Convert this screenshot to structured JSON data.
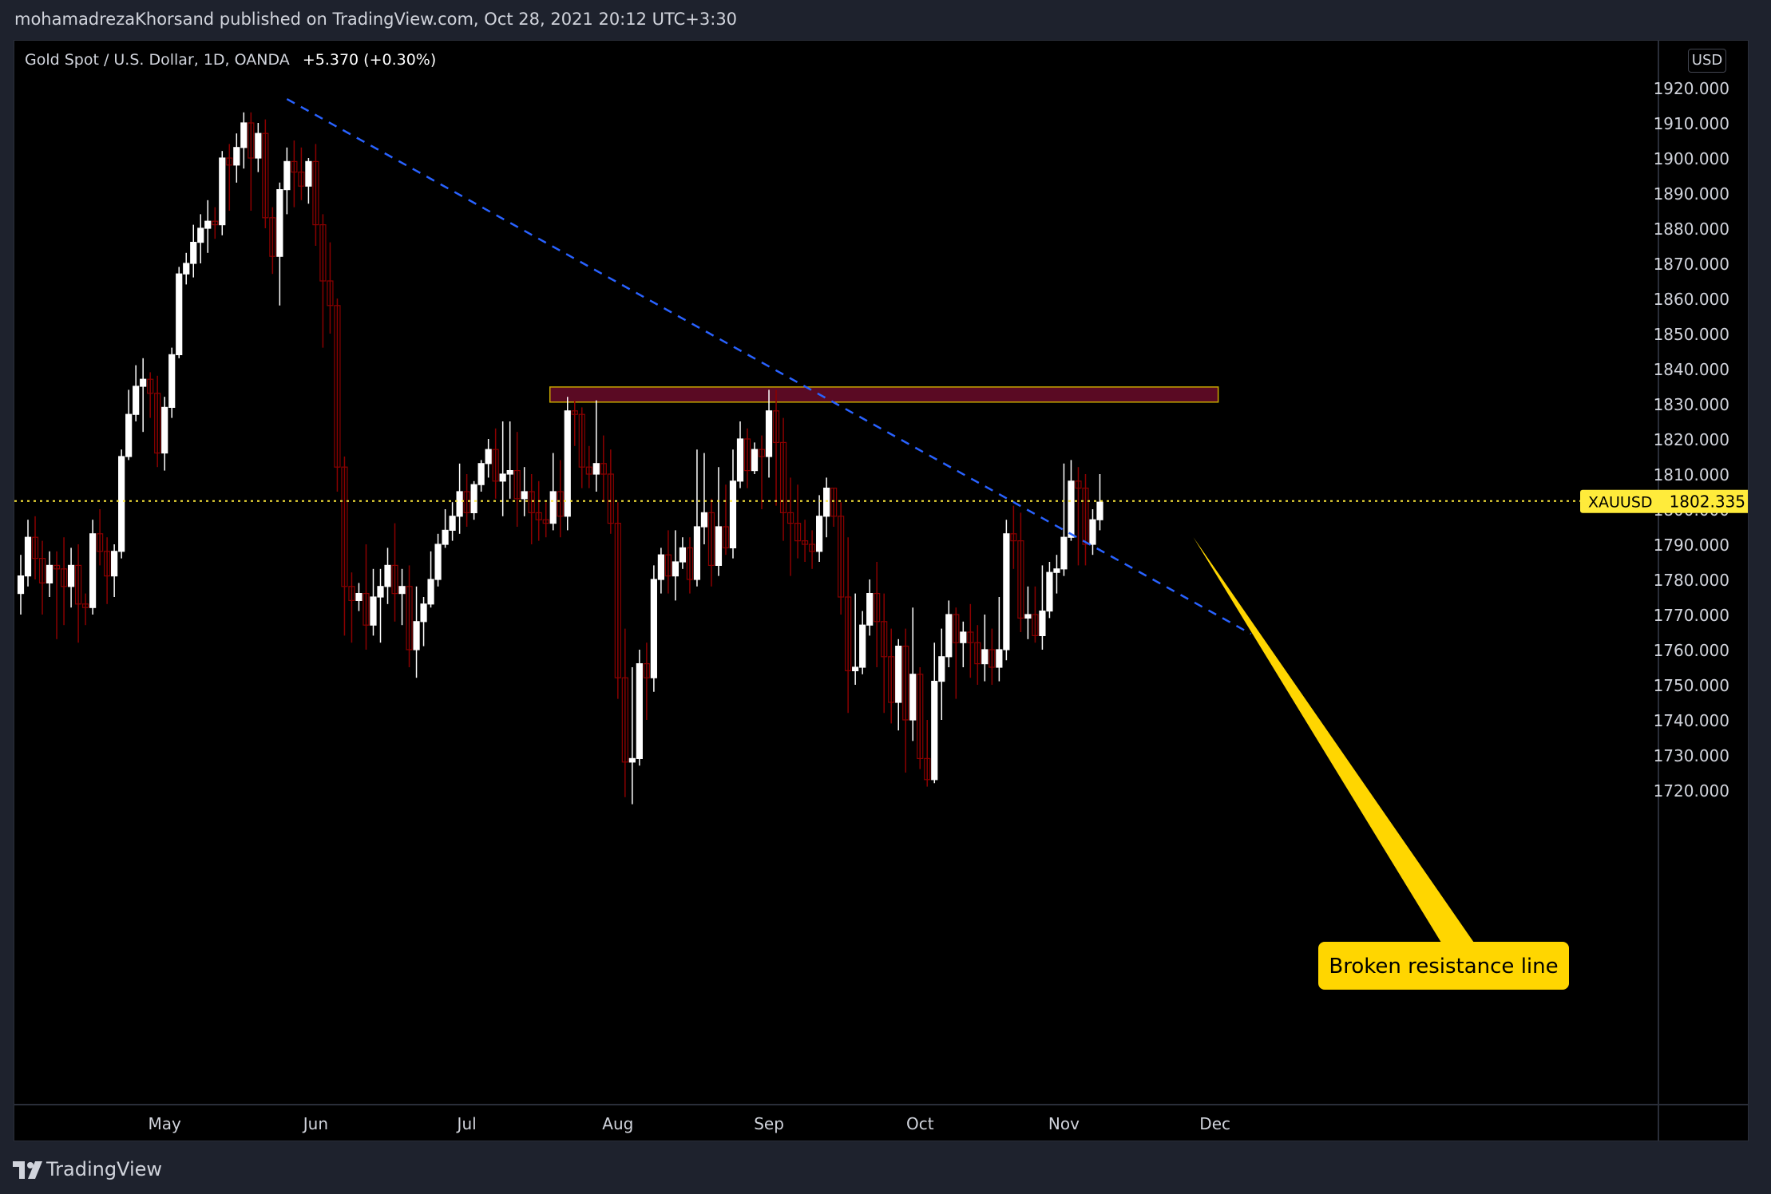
{
  "header": {
    "published": "mohamadrezaKhorsand published on TradingView.com, Oct 28, 2021 20:12 UTC+3:30"
  },
  "symbol": {
    "name": "Gold Spot / U.S. Dollar, 1D, OANDA",
    "change": "+5.370 (+0.30%)",
    "currency": "USD"
  },
  "footer": {
    "brand": "TradingView"
  },
  "colors": {
    "background": "#000000",
    "up_candle": "#ffffff",
    "down_candle": "#8b0000",
    "trendline": "#2962ff",
    "zone_fill": "#5a0a23",
    "zone_border": "#c8a800",
    "price_line": "#ffeb3b",
    "callout": "#ffd600"
  },
  "chart_data": {
    "type": "candlestick",
    "symbol": "XAUUSD",
    "ylim": [
      1715,
      1925
    ],
    "y_ticks": [
      "1920.000",
      "1910.000",
      "1900.000",
      "1890.000",
      "1880.000",
      "1870.000",
      "1860.000",
      "1850.000",
      "1840.000",
      "1830.000",
      "1820.000",
      "1810.000",
      "1800.000",
      "1790.000",
      "1780.000",
      "1770.000",
      "1760.000",
      "1750.000",
      "1740.000",
      "1730.000",
      "1720.000"
    ],
    "x_months": [
      "May",
      "Jun",
      "Jul",
      "Aug",
      "Sep",
      "Oct",
      "Nov",
      "Dec"
    ],
    "x_month_index": [
      20,
      41,
      62,
      83,
      104,
      125,
      145,
      166
    ],
    "last_price": 1802.335,
    "last_price_label": "XAUUSD",
    "last_price_text": "1802.335",
    "candles": [
      [
        1776,
        1781,
        1770,
        1787
      ],
      [
        1781,
        1792,
        1778,
        1797
      ],
      [
        1792,
        1786,
        1780,
        1798
      ],
      [
        1786,
        1779,
        1770,
        1791
      ],
      [
        1779,
        1784,
        1775,
        1788
      ],
      [
        1784,
        1783,
        1763,
        1788
      ],
      [
        1783,
        1778,
        1767,
        1792
      ],
      [
        1778,
        1784,
        1772,
        1789
      ],
      [
        1784,
        1773,
        1762,
        1790
      ],
      [
        1773,
        1772,
        1767,
        1776
      ],
      [
        1772,
        1793,
        1770,
        1797
      ],
      [
        1793,
        1788,
        1784,
        1800
      ],
      [
        1788,
        1781,
        1773,
        1792
      ],
      [
        1781,
        1788,
        1775,
        1790
      ],
      [
        1788,
        1815,
        1786,
        1817
      ],
      [
        1815,
        1827,
        1814,
        1834
      ],
      [
        1827,
        1835,
        1825,
        1841
      ],
      [
        1835,
        1837,
        1822,
        1843
      ],
      [
        1837,
        1833,
        1826,
        1839
      ],
      [
        1833,
        1816,
        1812,
        1838
      ],
      [
        1816,
        1829,
        1811,
        1832
      ],
      [
        1829,
        1844,
        1826,
        1846
      ],
      [
        1844,
        1867,
        1843,
        1869
      ],
      [
        1867,
        1870,
        1864,
        1873
      ],
      [
        1870,
        1876,
        1866,
        1881
      ],
      [
        1876,
        1880,
        1870,
        1884
      ],
      [
        1880,
        1882,
        1873,
        1888
      ],
      [
        1882,
        1881,
        1877,
        1886
      ],
      [
        1881,
        1900,
        1878,
        1902
      ],
      [
        1900,
        1898,
        1885,
        1904
      ],
      [
        1898,
        1903,
        1893,
        1907
      ],
      [
        1903,
        1910,
        1897,
        1913
      ],
      [
        1910,
        1900,
        1885,
        1913
      ],
      [
        1900,
        1907,
        1896,
        1910
      ],
      [
        1907,
        1883,
        1880,
        1911
      ],
      [
        1883,
        1872,
        1867,
        1886
      ],
      [
        1872,
        1891,
        1858,
        1893
      ],
      [
        1891,
        1899,
        1884,
        1903
      ],
      [
        1899,
        1896,
        1886,
        1905
      ],
      [
        1896,
        1892,
        1888,
        1903
      ],
      [
        1892,
        1899,
        1887,
        1900
      ],
      [
        1899,
        1881,
        1875,
        1904
      ],
      [
        1881,
        1865,
        1846,
        1884
      ],
      [
        1865,
        1858,
        1850,
        1876
      ],
      [
        1858,
        1812,
        1805,
        1860
      ],
      [
        1812,
        1778,
        1764,
        1815
      ],
      [
        1778,
        1774,
        1762,
        1782
      ],
      [
        1774,
        1776,
        1771,
        1779
      ],
      [
        1776,
        1767,
        1760,
        1790
      ],
      [
        1767,
        1775,
        1764,
        1783
      ],
      [
        1775,
        1778,
        1762,
        1783
      ],
      [
        1778,
        1784,
        1773,
        1789
      ],
      [
        1784,
        1776,
        1768,
        1796
      ],
      [
        1776,
        1778,
        1767,
        1783
      ],
      [
        1778,
        1760,
        1755,
        1784
      ],
      [
        1760,
        1768,
        1752,
        1778
      ],
      [
        1768,
        1773,
        1761,
        1775
      ],
      [
        1773,
        1780,
        1772,
        1788
      ],
      [
        1780,
        1790,
        1778,
        1793
      ],
      [
        1790,
        1794,
        1789,
        1800
      ],
      [
        1794,
        1798,
        1791,
        1802
      ],
      [
        1798,
        1805,
        1793,
        1813
      ],
      [
        1805,
        1799,
        1795,
        1810
      ],
      [
        1799,
        1807,
        1797,
        1808
      ],
      [
        1807,
        1813,
        1805,
        1814
      ],
      [
        1813,
        1817,
        1809,
        1820
      ],
      [
        1817,
        1808,
        1803,
        1823
      ],
      [
        1808,
        1810,
        1798,
        1825
      ],
      [
        1810,
        1811,
        1803,
        1825
      ],
      [
        1811,
        1803,
        1795,
        1822
      ],
      [
        1803,
        1805,
        1798,
        1812
      ],
      [
        1805,
        1799,
        1790,
        1810
      ],
      [
        1799,
        1797,
        1791,
        1808
      ],
      [
        1797,
        1796,
        1792,
        1802
      ],
      [
        1796,
        1805,
        1794,
        1816
      ],
      [
        1805,
        1798,
        1792,
        1814
      ],
      [
        1798,
        1828,
        1794,
        1832
      ],
      [
        1828,
        1827,
        1818,
        1831
      ],
      [
        1827,
        1812,
        1806,
        1829
      ],
      [
        1812,
        1810,
        1806,
        1818
      ],
      [
        1810,
        1813,
        1805,
        1831
      ],
      [
        1813,
        1810,
        1802,
        1821
      ],
      [
        1810,
        1796,
        1793,
        1817
      ],
      [
        1796,
        1752,
        1746,
        1802
      ],
      [
        1752,
        1728,
        1718,
        1766
      ],
      [
        1728,
        1729,
        1716,
        1755
      ],
      [
        1729,
        1756,
        1727,
        1760
      ],
      [
        1756,
        1752,
        1740,
        1762
      ],
      [
        1752,
        1780,
        1748,
        1784
      ],
      [
        1780,
        1787,
        1776,
        1789
      ],
      [
        1787,
        1781,
        1776,
        1794
      ],
      [
        1781,
        1785,
        1774,
        1794
      ],
      [
        1785,
        1789,
        1783,
        1792
      ],
      [
        1789,
        1780,
        1776,
        1792
      ],
      [
        1780,
        1795,
        1778,
        1817
      ],
      [
        1795,
        1799,
        1790,
        1816
      ],
      [
        1799,
        1784,
        1778,
        1803
      ],
      [
        1784,
        1795,
        1781,
        1812
      ],
      [
        1795,
        1789,
        1787,
        1807
      ],
      [
        1789,
        1808,
        1786,
        1817
      ],
      [
        1808,
        1820,
        1806,
        1825
      ],
      [
        1820,
        1811,
        1806,
        1823
      ],
      [
        1811,
        1817,
        1810,
        1819
      ],
      [
        1817,
        1815,
        1800,
        1821
      ],
      [
        1815,
        1828,
        1809,
        1834
      ],
      [
        1828,
        1819,
        1801,
        1834
      ],
      [
        1819,
        1799,
        1791,
        1826
      ],
      [
        1799,
        1796,
        1781,
        1809
      ],
      [
        1796,
        1791,
        1786,
        1807
      ],
      [
        1791,
        1790,
        1785,
        1797
      ],
      [
        1790,
        1788,
        1783,
        1794
      ],
      [
        1788,
        1798,
        1785,
        1804
      ],
      [
        1798,
        1806,
        1792,
        1809
      ],
      [
        1806,
        1798,
        1795,
        1806
      ],
      [
        1798,
        1775,
        1770,
        1802
      ],
      [
        1775,
        1754,
        1742,
        1792
      ],
      [
        1754,
        1755,
        1750,
        1776
      ],
      [
        1755,
        1767,
        1753,
        1771
      ],
      [
        1767,
        1776,
        1764,
        1780
      ],
      [
        1776,
        1768,
        1755,
        1785
      ],
      [
        1768,
        1758,
        1742,
        1776
      ],
      [
        1758,
        1745,
        1739,
        1766
      ],
      [
        1745,
        1761,
        1737,
        1763
      ],
      [
        1761,
        1740,
        1725,
        1766
      ],
      [
        1740,
        1753,
        1734,
        1772
      ],
      [
        1753,
        1729,
        1726,
        1755
      ],
      [
        1729,
        1723,
        1721,
        1740
      ],
      [
        1723,
        1751,
        1722,
        1762
      ],
      [
        1751,
        1758,
        1740,
        1766
      ],
      [
        1758,
        1770,
        1755,
        1774
      ],
      [
        1770,
        1762,
        1746,
        1772
      ],
      [
        1762,
        1765,
        1755,
        1768
      ],
      [
        1765,
        1762,
        1752,
        1773
      ],
      [
        1762,
        1756,
        1750,
        1767
      ],
      [
        1756,
        1760,
        1751,
        1770
      ],
      [
        1760,
        1755,
        1750,
        1766
      ],
      [
        1755,
        1760,
        1751,
        1775
      ],
      [
        1760,
        1793,
        1757,
        1797
      ],
      [
        1793,
        1791,
        1783,
        1801
      ],
      [
        1791,
        1769,
        1765,
        1799
      ],
      [
        1769,
        1770,
        1763,
        1778
      ],
      [
        1770,
        1764,
        1762,
        1778
      ],
      [
        1764,
        1771,
        1760,
        1784
      ],
      [
        1771,
        1782,
        1769,
        1785
      ],
      [
        1782,
        1783,
        1776,
        1787
      ],
      [
        1783,
        1792,
        1781,
        1813
      ],
      [
        1792,
        1808,
        1791,
        1814
      ],
      [
        1808,
        1806,
        1784,
        1812
      ],
      [
        1806,
        1790,
        1784,
        1810
      ],
      [
        1790,
        1797,
        1787,
        1800
      ],
      [
        1797,
        1802,
        1794,
        1810
      ]
    ],
    "resistance_zone": {
      "low": 1830.5,
      "high": 1834.8,
      "start_index": 74,
      "end_index": 166
    },
    "trendline": {
      "start_index": 37,
      "start_price": 1916.8,
      "end_index": 171,
      "end_price": 1764.5,
      "style": "dashed"
    },
    "annotation": {
      "text": "Broken resistance line",
      "target_index": 163,
      "target_price": 1792
    }
  }
}
